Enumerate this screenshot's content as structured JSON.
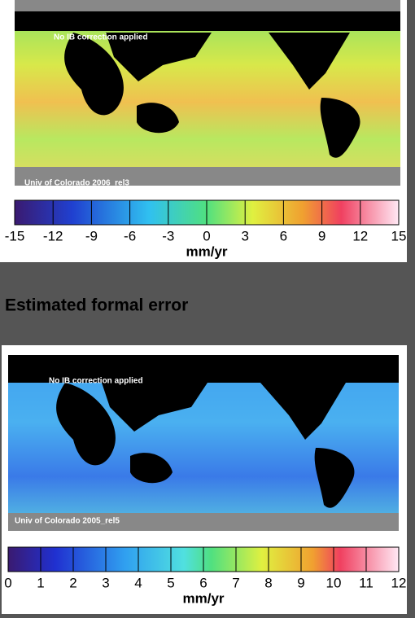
{
  "panels": [
    {
      "annotation": "No IB correction applied",
      "source": "Univ of Colorado 2006_rel3",
      "colorbar": {
        "lim": [
          -15,
          15
        ],
        "ticks": [
          -15,
          -12,
          -9,
          -6,
          -3,
          0,
          3,
          6,
          9,
          12,
          15
        ],
        "unit": "mm/yr"
      }
    },
    {
      "annotation": "No IB correction applied",
      "source": "Univ of Colorado 2005_rel5",
      "colorbar": {
        "lim": [
          0,
          12
        ],
        "ticks": [
          0,
          1,
          2,
          3,
          4,
          5,
          6,
          7,
          8,
          9,
          10,
          11,
          12
        ],
        "unit": "mm/yr"
      }
    }
  ],
  "heading": "Estimated formal error"
}
